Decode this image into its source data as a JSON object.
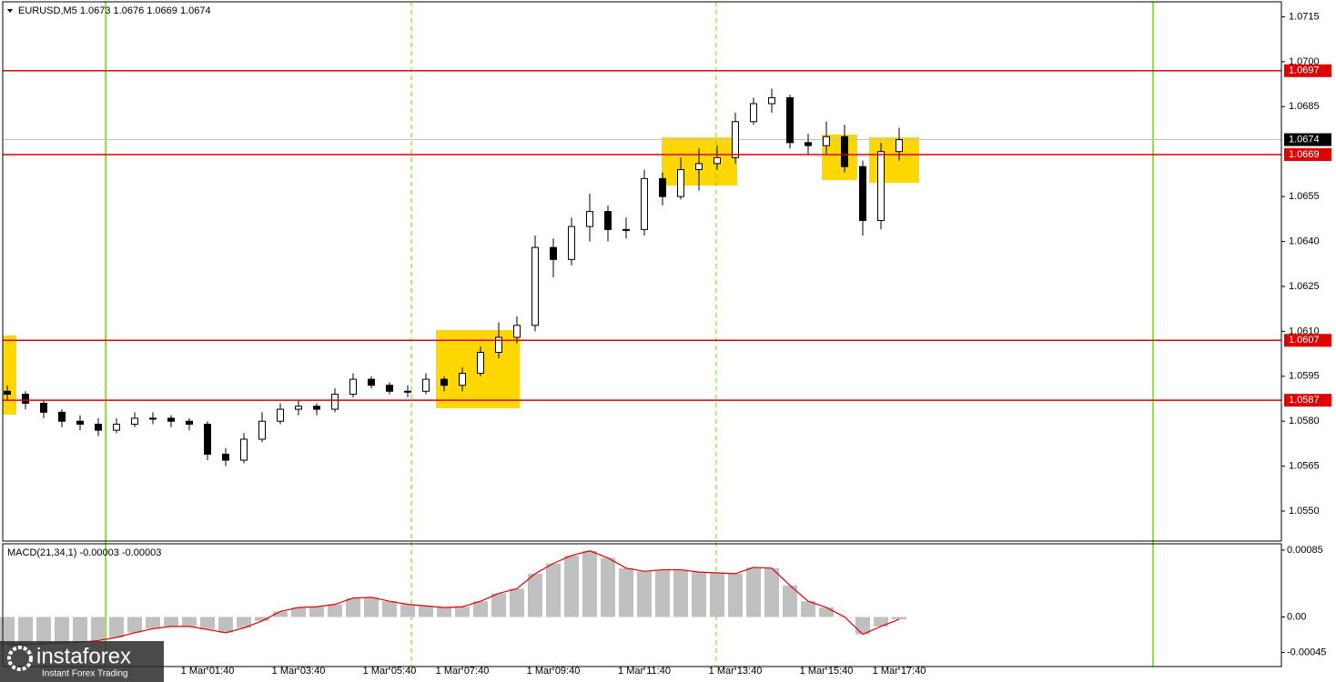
{
  "chart_data": [
    {
      "type": "candlestick",
      "title": "EURUSD,M5  1.0673 1.0676 1.0669 1.0674",
      "categories": [
        null,
        null,
        null,
        null,
        null,
        null,
        null,
        null,
        null,
        null,
        null,
        "1 Mar 01:40",
        null,
        null,
        null,
        null,
        "1 Mar 03:40",
        null,
        null,
        null,
        null,
        "1 Mar 05:40",
        null,
        null,
        null,
        "1 Mar 07:40",
        null,
        null,
        null,
        null,
        "1 Mar 09:40",
        null,
        null,
        null,
        null,
        "1 Mar 11:40",
        null,
        null,
        null,
        null,
        "1 Mar 13:40",
        null,
        null,
        null,
        null,
        "1 Mar 15:40",
        null,
        null,
        null,
        "1 Mar 17:40"
      ],
      "open": [
        1.059,
        1.0589,
        1.0586,
        1.0583,
        1.058,
        1.0579,
        1.0577,
        1.0579,
        1.0581,
        1.0581,
        1.058,
        1.0579,
        1.0569,
        1.0567,
        1.0574,
        1.058,
        1.0584,
        1.0585,
        1.0584,
        1.0589,
        1.0594,
        1.0592,
        1.059,
        1.059,
        1.0594,
        1.0592,
        1.0596,
        1.0603,
        1.0608,
        1.0612,
        1.0638,
        1.0634,
        1.0645,
        1.065,
        1.0644,
        1.0644,
        1.0661,
        1.0655,
        1.0664,
        1.0666,
        1.0668,
        1.068,
        1.0686,
        1.0688,
        1.0673,
        1.0672,
        1.0675,
        1.0665,
        1.0647,
        1.067
      ],
      "high": [
        1.0592,
        1.059,
        1.0587,
        1.0584,
        1.0582,
        1.0581,
        1.0581,
        1.0583,
        1.0583,
        1.0582,
        1.0581,
        1.058,
        1.0571,
        1.0576,
        1.0583,
        1.0586,
        1.0587,
        1.0586,
        1.0591,
        1.0596,
        1.0595,
        1.0593,
        1.0592,
        1.0596,
        1.0595,
        1.0598,
        1.0605,
        1.0613,
        1.0615,
        1.0642,
        1.0641,
        1.0648,
        1.0656,
        1.0652,
        1.0648,
        1.0664,
        1.0663,
        1.0668,
        1.0671,
        1.0672,
        1.0683,
        1.0688,
        1.0691,
        1.0689,
        1.0676,
        1.068,
        1.0679,
        1.0667,
        1.0673,
        1.0678
      ],
      "low": [
        1.0587,
        1.0584,
        1.0581,
        1.0578,
        1.0577,
        1.0575,
        1.0576,
        1.0578,
        1.0579,
        1.0578,
        1.0577,
        1.0567,
        1.0565,
        1.0566,
        1.0573,
        1.0579,
        1.0582,
        1.0582,
        1.0583,
        1.0588,
        1.0591,
        1.0589,
        1.0588,
        1.0589,
        1.059,
        1.059,
        1.0595,
        1.0601,
        1.0606,
        1.061,
        1.0628,
        1.0632,
        1.064,
        1.064,
        1.0641,
        1.0642,
        1.0652,
        1.0654,
        1.0657,
        1.0664,
        1.0666,
        1.0679,
        1.0683,
        1.0671,
        1.0669,
        1.0669,
        1.0663,
        1.0642,
        1.0644,
        1.0667
      ],
      "close": [
        1.0589,
        1.0586,
        1.0583,
        1.058,
        1.0579,
        1.0577,
        1.0579,
        1.0581,
        1.0581,
        1.058,
        1.0579,
        1.0569,
        1.0567,
        1.0574,
        1.058,
        1.0584,
        1.0585,
        1.0584,
        1.0589,
        1.0594,
        1.0592,
        1.059,
        1.059,
        1.0594,
        1.0592,
        1.0596,
        1.0603,
        1.0608,
        1.0612,
        1.0638,
        1.0634,
        1.0645,
        1.065,
        1.0644,
        1.0644,
        1.0661,
        1.0655,
        1.0664,
        1.0666,
        1.0668,
        1.068,
        1.0686,
        1.0688,
        1.0673,
        1.0672,
        1.0675,
        1.0665,
        1.0647,
        1.067,
        1.0674
      ],
      "ylim": [
        1.054,
        1.072
      ],
      "yticks": [
        1.0715,
        {
          "value": 1.07,
          "label": "1.0700"
        },
        1.0685,
        1.0655,
        {
          "value": 1.064,
          "label": "1.0640"
        },
        1.0625,
        {
          "value": 1.061,
          "label": "1.0610"
        },
        1.0595,
        {
          "value": 1.058,
          "label": "1.0580"
        },
        1.0565,
        {
          "value": 1.055,
          "label": "1.0550"
        }
      ],
      "levels": [
        1.0697,
        1.0669,
        1.0607,
        1.0587
      ],
      "level_color": "#e00000",
      "current_price": 1.0674
    },
    {
      "type": "macd",
      "title": "MACD(21,34,1) -0.00003 -0.00003",
      "values": [
        -0.00035,
        -0.00035,
        -0.00034,
        -0.00033,
        -0.00032,
        -0.0003,
        -0.00026,
        -0.0002,
        -0.00015,
        -0.00012,
        -0.00012,
        -0.00016,
        -0.0002,
        -0.00014,
        -5e-05,
        7e-05,
        0.00012,
        0.00013,
        0.00016,
        0.00024,
        0.00025,
        0.0002,
        0.00016,
        0.00014,
        0.00012,
        0.00013,
        0.0002,
        0.0003,
        0.00036,
        0.00055,
        0.00068,
        0.00078,
        0.00084,
        0.00075,
        0.00062,
        0.00058,
        0.0006,
        0.0006,
        0.00057,
        0.00056,
        0.00055,
        0.00063,
        0.00062,
        0.0004,
        0.0002,
        0.00012,
        0,
        -0.00022,
        -0.00012,
        -3e-05
      ],
      "color": "#c0c0c0",
      "line_color": "#e00000",
      "ylim": [
        -0.00063,
        0.00093
      ],
      "yticks": [
        0.00085,
        {
          "value": 0,
          "label": "0.00"
        },
        -0.00045
      ]
    }
  ],
  "branding": {
    "name": "instaforex",
    "tagline": "Instant Forex Trading"
  }
}
